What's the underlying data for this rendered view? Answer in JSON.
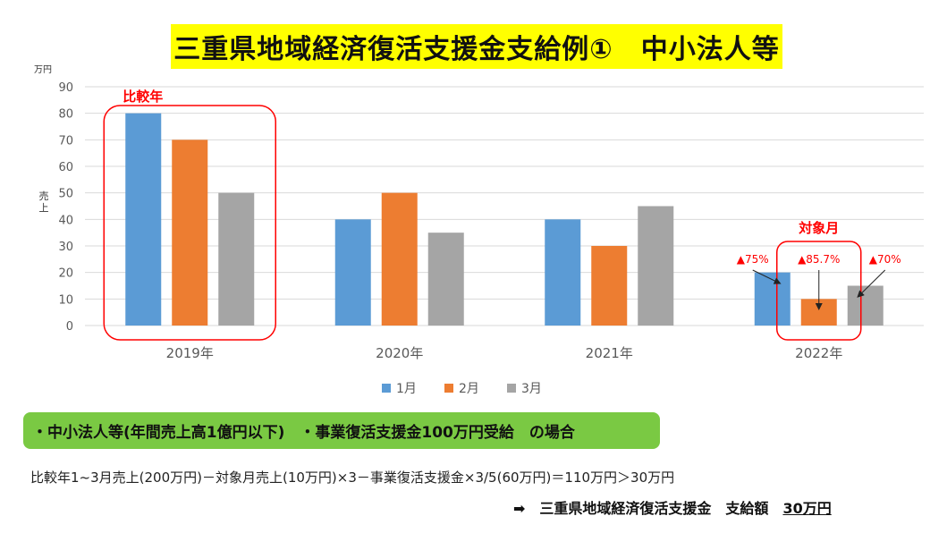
{
  "title": "三重県地域経済復活支援金支給例①　中小法人等",
  "chart_data": {
    "type": "bar",
    "yunit": "万円",
    "ylabel": "売上",
    "ylim": [
      0,
      90
    ],
    "yticks": [
      0,
      10,
      20,
      30,
      40,
      50,
      60,
      70,
      80,
      90
    ],
    "grid": true,
    "legend_position": "bottom",
    "categories": [
      "2019年",
      "2020年",
      "2021年",
      "2022年"
    ],
    "series": [
      {
        "name": "1月",
        "color": "#5b9bd5",
        "values": [
          80,
          40,
          40,
          20
        ]
      },
      {
        "name": "2月",
        "color": "#ed7d31",
        "values": [
          70,
          50,
          30,
          10
        ]
      },
      {
        "name": "3月",
        "color": "#a5a5a5",
        "values": [
          50,
          35,
          45,
          15
        ]
      }
    ],
    "annotations": {
      "comparison_year": {
        "label": "比較年",
        "category": "2019年"
      },
      "target_month": {
        "label": "対象月",
        "category": "2022年",
        "series": "2月"
      },
      "decreases": [
        {
          "label": "▲75%",
          "category": "2022年",
          "series": "1月"
        },
        {
          "label": "▲85.7%",
          "category": "2022年",
          "series": "2月"
        },
        {
          "label": "▲70%",
          "category": "2022年",
          "series": "3月"
        }
      ]
    },
    "annotation_color": "#ff0000"
  },
  "condition_text": "・中小法人等(年間売上高1億円以下)　・事業復活支援金100万円受給　の場合",
  "formula_text": "比較年1~3月売上(200万円)－対象月売上(10万円)×3－事業復活支援金×3/5(60万円)＝110万円＞30万円",
  "result": {
    "arrow": "➡",
    "label": "三重県地域経済復活支援金　支給額",
    "amount": "30万円"
  }
}
